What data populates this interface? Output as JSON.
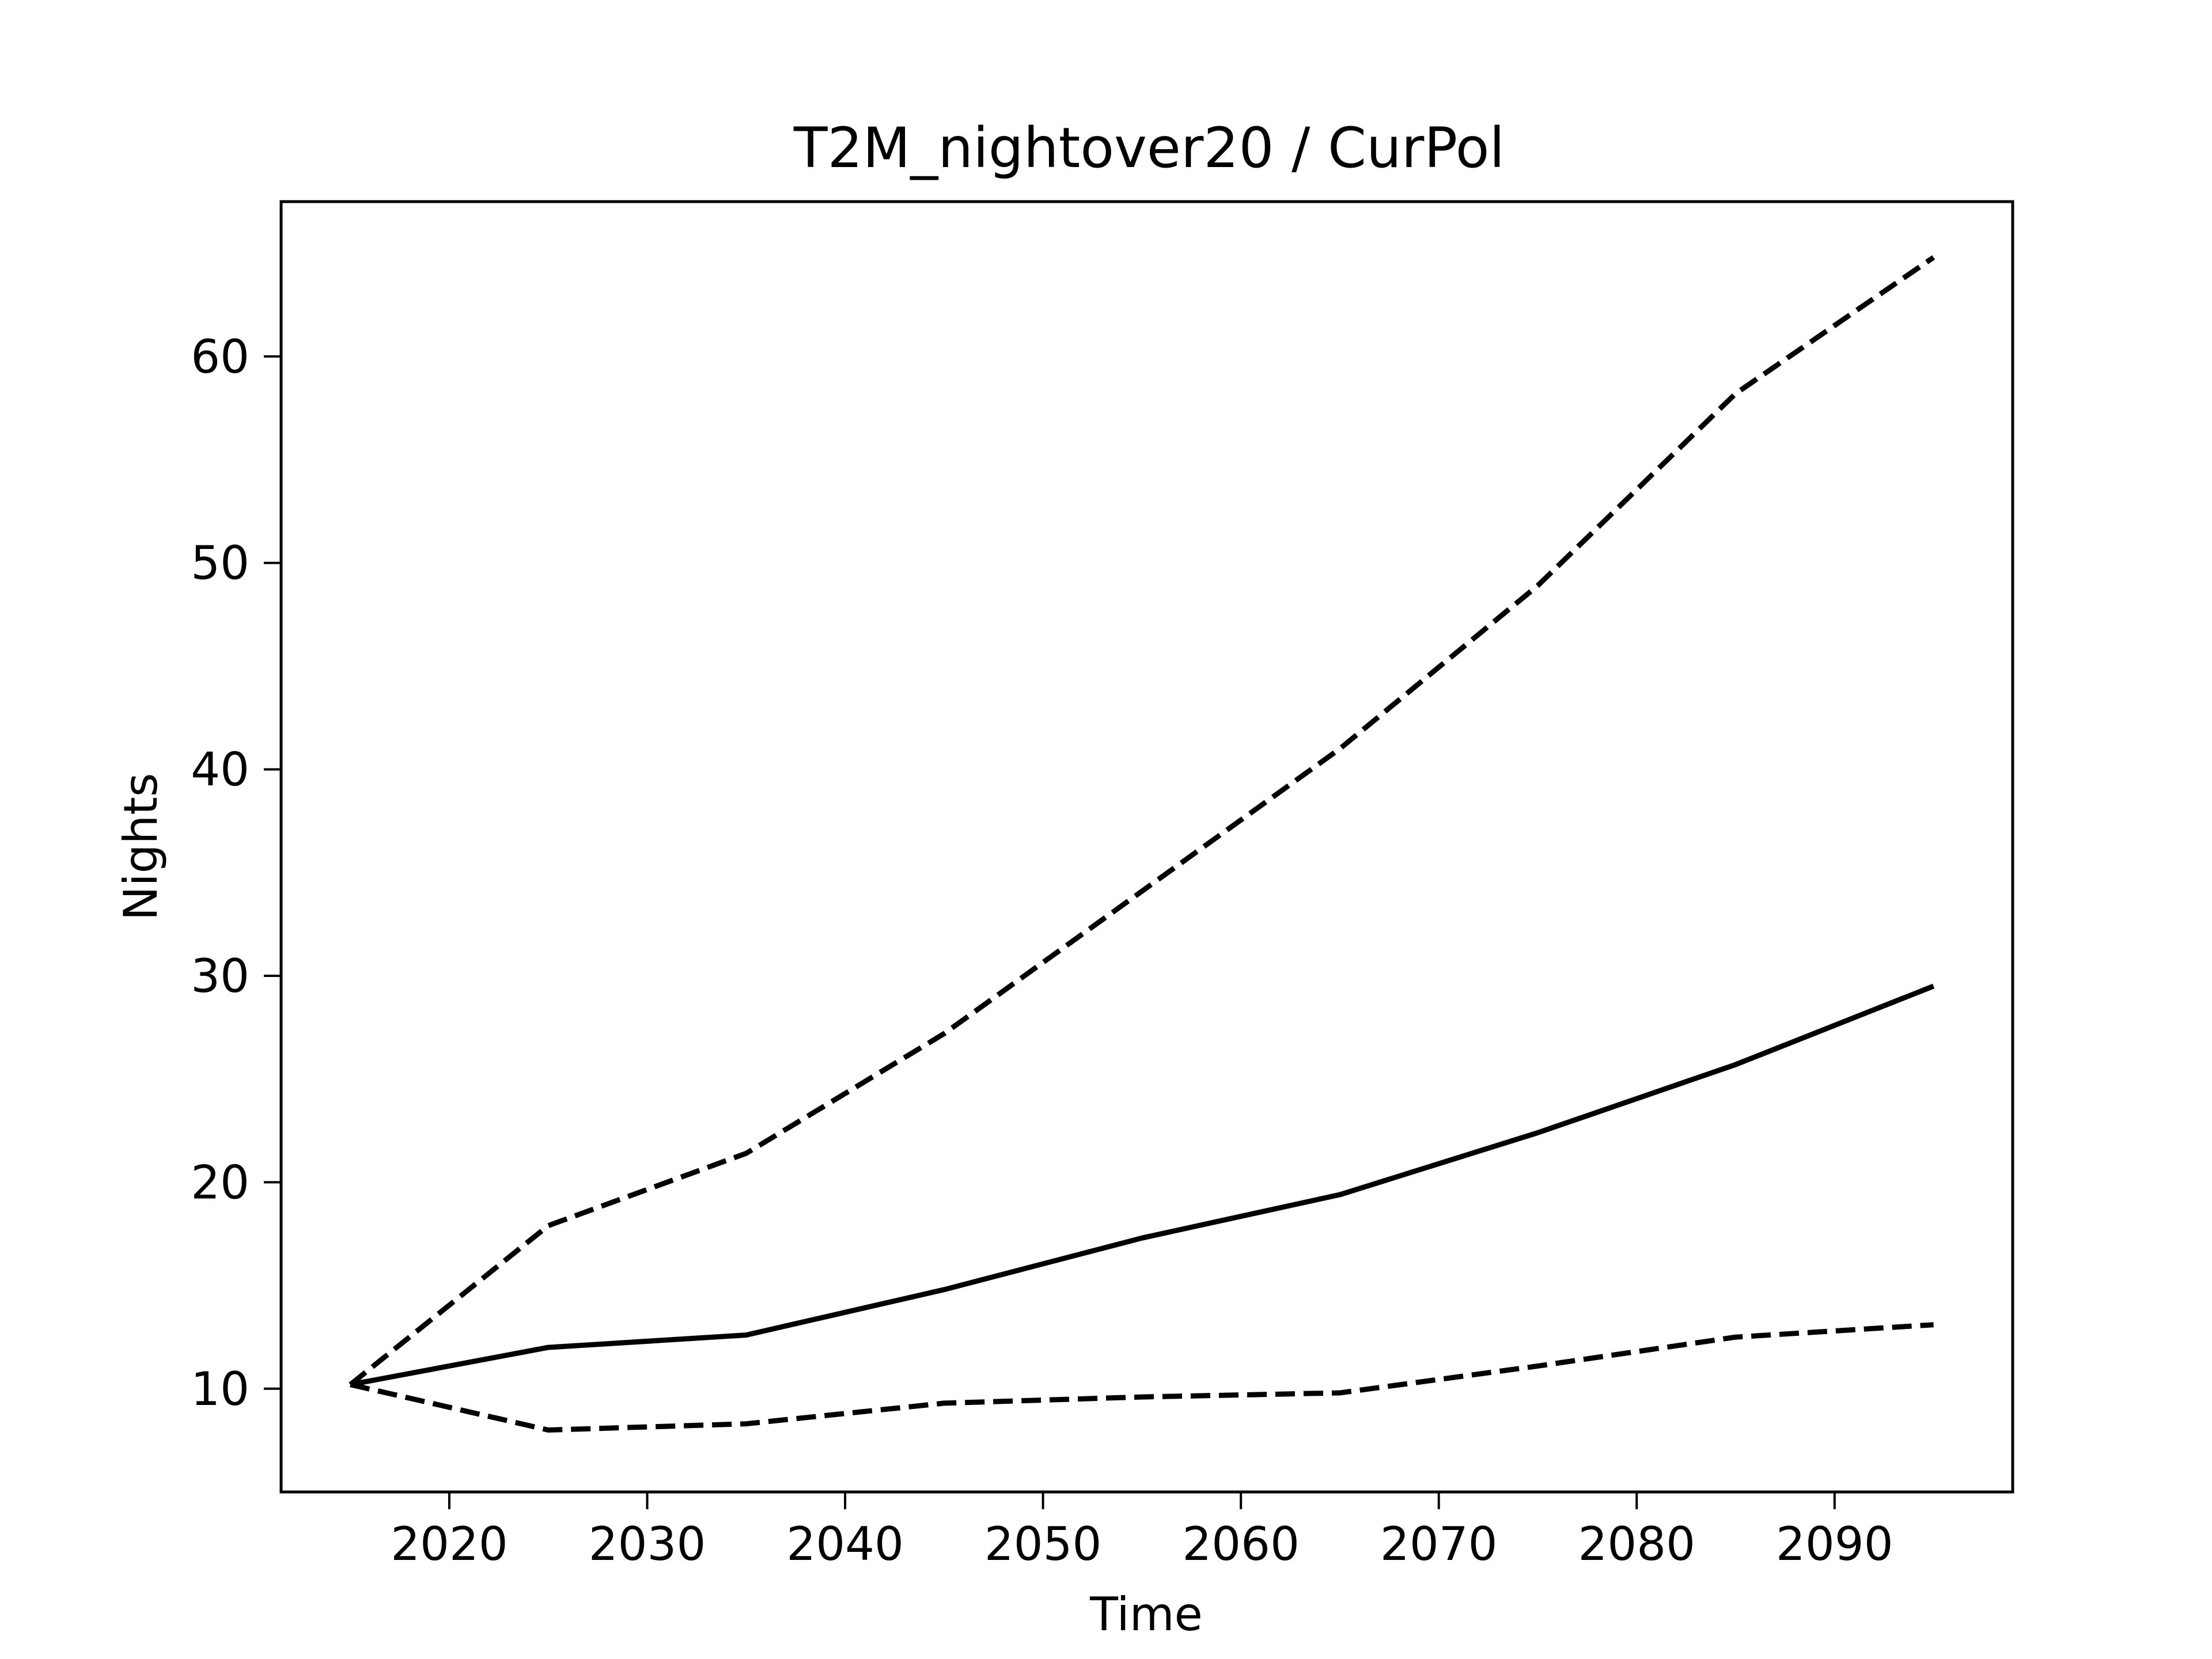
{
  "chart_data": {
    "type": "line",
    "title": "T2M_nightover20 / CurPol",
    "xlabel": "Time",
    "ylabel": "Nights",
    "xlim": [
      2011.5,
      2099
    ],
    "ylim": [
      5,
      67.5
    ],
    "x_ticks": [
      2020,
      2030,
      2040,
      2050,
      2060,
      2070,
      2080,
      2090
    ],
    "y_ticks": [
      10,
      20,
      30,
      40,
      50,
      60
    ],
    "grid": false,
    "legend": "none",
    "x": [
      2015,
      2025,
      2035,
      2045,
      2055,
      2065,
      2075,
      2085,
      2095
    ],
    "series": [
      {
        "style": "solid",
        "color": "#000000",
        "values": [
          10.2,
          12.0,
          12.6,
          14.8,
          17.3,
          19.4,
          22.4,
          25.7,
          29.5
        ]
      },
      {
        "style": "dashed",
        "color": "#000000",
        "values": [
          10.2,
          17.9,
          21.4,
          27.2,
          34.1,
          41.0,
          48.9,
          58.2,
          64.8
        ]
      },
      {
        "style": "dashed",
        "color": "#000000",
        "values": [
          10.2,
          8.0,
          8.3,
          9.3,
          9.6,
          9.8,
          11.1,
          12.5,
          13.1
        ]
      }
    ]
  }
}
